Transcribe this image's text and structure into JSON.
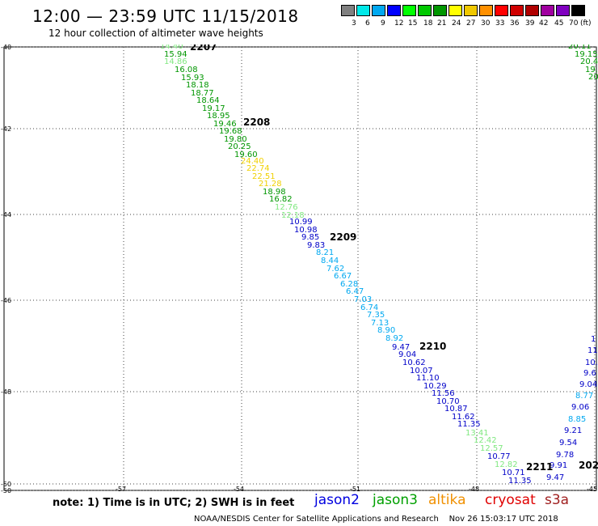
{
  "header": {
    "title": "12:00 — 23:59 UTC 11/15/2018",
    "subtitle": "12 hour collection of altimeter wave heights"
  },
  "legend": {
    "colors": [
      "#808080",
      "#00e8e8",
      "#00a8f0",
      "#0000ff",
      "#00ff00",
      "#00c800",
      "#009600",
      "#ffff00",
      "#f0c800",
      "#ff9000",
      "#ff0000",
      "#d00000",
      "#b00000",
      "#a000a0",
      "#8000c0",
      "#000000"
    ],
    "labels": [
      "3",
      "6",
      "9",
      "12",
      "15",
      "18",
      "21",
      "24",
      "27",
      "30",
      "33",
      "36",
      "39",
      "42",
      "45",
      "70",
      "(ft)"
    ]
  },
  "map": {
    "lat_ticks": [
      "-40",
      "-42",
      "-44",
      "-46",
      "-48",
      "-50",
      "-50"
    ],
    "lon_ticks": [
      "-57",
      "-54",
      "-51",
      "-48",
      "-45"
    ],
    "time_labels": [
      {
        "text": "2207",
        "color": "#007000"
      },
      {
        "text": "2208",
        "color": "#007000"
      },
      {
        "text": "2209",
        "color": "#007000"
      },
      {
        "text": "2210",
        "color": "#007000"
      },
      {
        "text": "2211",
        "color": "#007000"
      },
      {
        "text": "202",
        "color": "#f09000"
      }
    ],
    "main_track": [
      {
        "v": "14.40",
        "c": "#80e880"
      },
      {
        "v": "15.94",
        "c": "#009600"
      },
      {
        "v": "14.86",
        "c": "#80e880"
      },
      {
        "v": "16.08",
        "c": "#009600"
      },
      {
        "v": "15.93",
        "c": "#009600"
      },
      {
        "v": "18.18",
        "c": "#009600"
      },
      {
        "v": "18.77",
        "c": "#009600"
      },
      {
        "v": "18.64",
        "c": "#009600"
      },
      {
        "v": "19.17",
        "c": "#009600"
      },
      {
        "v": "18.95",
        "c": "#009600"
      },
      {
        "v": "19.46",
        "c": "#009600"
      },
      {
        "v": "19.68",
        "c": "#009600"
      },
      {
        "v": "19.80",
        "c": "#009600"
      },
      {
        "v": "20.25",
        "c": "#009600"
      },
      {
        "v": "19.60",
        "c": "#009600"
      },
      {
        "v": "24.40",
        "c": "#f0d000"
      },
      {
        "v": "22.74",
        "c": "#f0d000"
      },
      {
        "v": "22.51",
        "c": "#f0d000"
      },
      {
        "v": "21.28",
        "c": "#f0d000"
      },
      {
        "v": "18.98",
        "c": "#009600"
      },
      {
        "v": "16.82",
        "c": "#009600"
      },
      {
        "v": "12.76",
        "c": "#80e880"
      },
      {
        "v": "12.18",
        "c": "#80e880"
      },
      {
        "v": "10.99",
        "c": "#0000c8"
      },
      {
        "v": "10.98",
        "c": "#0000c8"
      },
      {
        "v": "9.85",
        "c": "#0000c8"
      },
      {
        "v": "9.83",
        "c": "#0000c8"
      },
      {
        "v": "8.21",
        "c": "#00a8f0"
      },
      {
        "v": "8.44",
        "c": "#00a8f0"
      },
      {
        "v": "7.62",
        "c": "#00a8f0"
      },
      {
        "v": "6.67",
        "c": "#00a8f0"
      },
      {
        "v": "6.28",
        "c": "#00a8f0"
      },
      {
        "v": "6.47",
        "c": "#00a8f0"
      },
      {
        "v": "7.03",
        "c": "#00a8f0"
      },
      {
        "v": "6.74",
        "c": "#00a8f0"
      },
      {
        "v": "7.35",
        "c": "#00a8f0"
      },
      {
        "v": "7.13",
        "c": "#00a8f0"
      },
      {
        "v": "8.90",
        "c": "#00a8f0"
      },
      {
        "v": "8.92",
        "c": "#00a8f0"
      },
      {
        "v": "9.47",
        "c": "#0000c8"
      },
      {
        "v": "9.04",
        "c": "#0000c8"
      },
      {
        "v": "10.62",
        "c": "#0000c8"
      },
      {
        "v": "10.07",
        "c": "#0000c8"
      },
      {
        "v": "11.10",
        "c": "#0000c8"
      },
      {
        "v": "10.29",
        "c": "#0000c8"
      },
      {
        "v": "11.56",
        "c": "#0000c8"
      },
      {
        "v": "10.70",
        "c": "#0000c8"
      },
      {
        "v": "10.87",
        "c": "#0000c8"
      },
      {
        "v": "11.62",
        "c": "#0000c8"
      },
      {
        "v": "11.35",
        "c": "#0000c8"
      },
      {
        "v": "13.41",
        "c": "#80e880"
      },
      {
        "v": "12.42",
        "c": "#80e880"
      },
      {
        "v": "12.57",
        "c": "#80e880"
      },
      {
        "v": "10.77",
        "c": "#0000c8"
      },
      {
        "v": "12.82",
        "c": "#80e880"
      },
      {
        "v": "10.71",
        "c": "#0000c8"
      },
      {
        "v": "11.35",
        "c": "#0000c8"
      }
    ],
    "right_track_top": [
      {
        "v": "20.11",
        "c": "#009600"
      },
      {
        "v": "19.15",
        "c": "#009600"
      },
      {
        "v": "20.4",
        "c": "#009600"
      },
      {
        "v": "19.",
        "c": "#009600"
      },
      {
        "v": "20",
        "c": "#009600"
      }
    ],
    "right_track_bottom": [
      {
        "v": "1",
        "c": "#0000c8"
      },
      {
        "v": "11",
        "c": "#0000c8"
      },
      {
        "v": "10.",
        "c": "#0000c8"
      },
      {
        "v": "9.6",
        "c": "#0000c8"
      },
      {
        "v": "9.04",
        "c": "#0000c8"
      },
      {
        "v": "8.77",
        "c": "#00a8f0"
      },
      {
        "v": "9.06",
        "c": "#0000c8"
      },
      {
        "v": "8.85",
        "c": "#00a8f0"
      },
      {
        "v": "9.21",
        "c": "#0000c8"
      },
      {
        "v": "9.54",
        "c": "#0000c8"
      },
      {
        "v": "9.78",
        "c": "#0000c8"
      },
      {
        "v": "9.91",
        "c": "#0000c8"
      },
      {
        "v": "9.47",
        "c": "#0000c8"
      }
    ]
  },
  "footer": {
    "note": "note: 1) Time is in UTC; 2) SWH is in feet",
    "satellites": [
      {
        "name": "jason2",
        "color": "#0000e0"
      },
      {
        "name": "jason3",
        "color": "#00a000"
      },
      {
        "name": "altika",
        "color": "#f09000"
      },
      {
        "name": "cryosat",
        "color": "#e00000"
      },
      {
        "name": "s3a",
        "color": "#a02020"
      }
    ],
    "credit": "NOAA/NESDIS Center for Satellite Applications and Research",
    "timestamp": "Nov 26 15:03:17 UTC 2018"
  }
}
